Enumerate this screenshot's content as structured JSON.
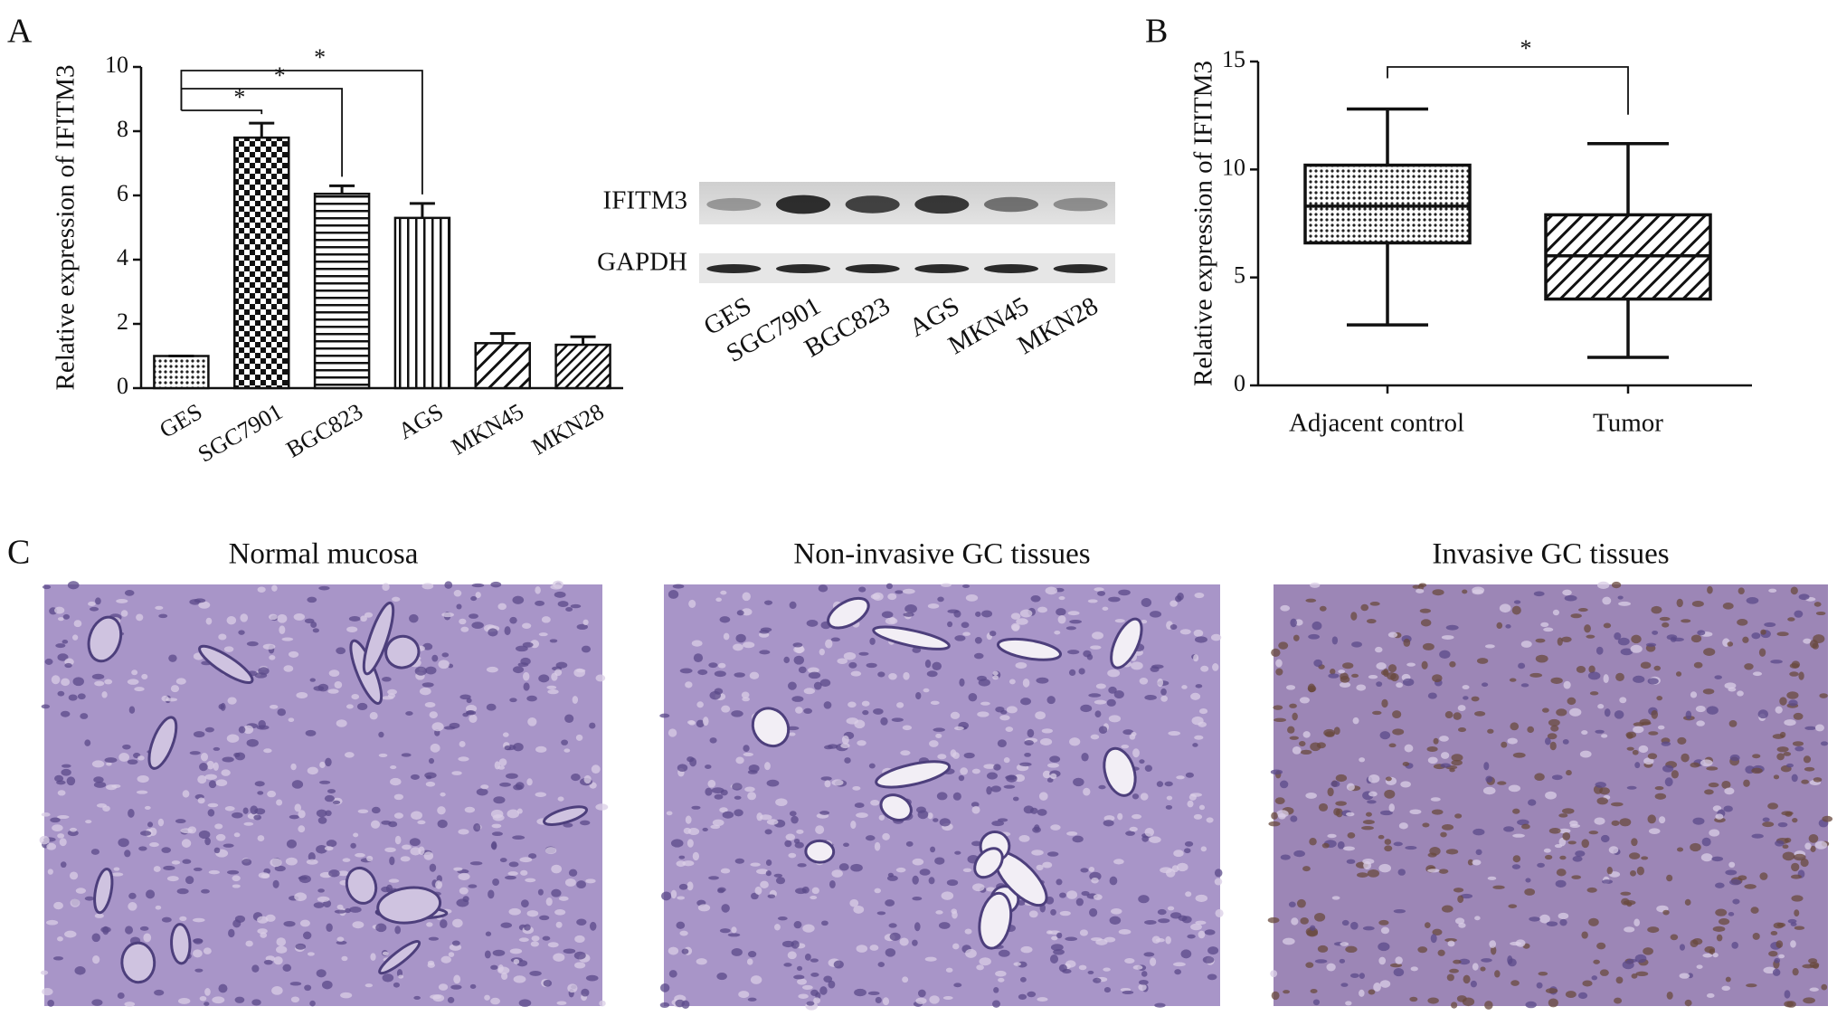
{
  "panel_labels": [
    "A",
    "B",
    "C"
  ],
  "chart_data": [
    {
      "type": "bar",
      "y_label": "Relative expression of IFITM3",
      "categories": [
        "GES",
        "SGC7901",
        "BGC823",
        "AGS",
        "MKN45",
        "MKN28"
      ],
      "values": [
        1.0,
        7.8,
        6.05,
        5.3,
        1.4,
        1.35
      ],
      "errors": [
        0,
        0.45,
        0.25,
        0.45,
        0.3,
        0.25
      ],
      "patterns": [
        "dots",
        "checker",
        "hlines",
        "vlines",
        "diag",
        "diag-dense"
      ],
      "ylim": [
        0,
        10
      ],
      "yticks": [
        0,
        2,
        4,
        6,
        8,
        10
      ],
      "significance": [
        {
          "groups": [
            "GES",
            "SGC7901"
          ],
          "label": "*"
        },
        {
          "groups": [
            "GES",
            "BGC823"
          ],
          "label": "*"
        },
        {
          "groups": [
            "GES",
            "AGS"
          ],
          "label": "*"
        }
      ]
    },
    {
      "type": "box",
      "y_label": "Relative expression of IFITM3",
      "categories": [
        "Adjacent control",
        "Tumor"
      ],
      "boxes": [
        {
          "min": 2.8,
          "q1": 6.6,
          "median": 8.3,
          "q3": 10.2,
          "max": 12.8
        },
        {
          "min": 1.3,
          "q1": 4.0,
          "median": 6.0,
          "q3": 7.9,
          "max": 11.2
        }
      ],
      "patterns": [
        "dots",
        "diag"
      ],
      "ylim": [
        0,
        15
      ],
      "yticks": [
        0,
        5,
        10,
        15
      ],
      "significance": [
        {
          "groups": [
            "Adjacent control",
            "Tumor"
          ],
          "label": "*"
        }
      ]
    }
  ],
  "blot": {
    "rows": [
      "IFITM3",
      "GAPDH"
    ],
    "lanes": [
      "GES",
      "SGC7901",
      "BGC823",
      "AGS",
      "MKN45",
      "MKN28"
    ]
  },
  "histology": {
    "titles": [
      "Normal mucosa",
      "Non-invasive GC tissues",
      "Invasive GC tissues"
    ]
  }
}
